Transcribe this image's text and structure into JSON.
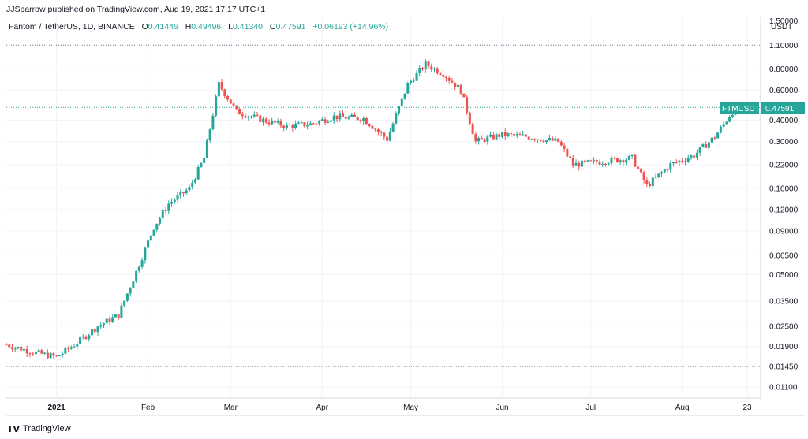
{
  "header": {
    "published": "JJSparrow published on TradingView.com, Aug 19, 2021 17:17 UTC+1",
    "symbol": "Fantom / TetherUS, 1D, BINANCE",
    "o_label": "O",
    "o_value": "0.41446",
    "h_label": "H",
    "h_value": "0.49496",
    "l_label": "L",
    "l_value": "0.41340",
    "c_label": "C",
    "c_value": "0.47591",
    "change": "+0.06193 (+14.96%)"
  },
  "axis": {
    "unit": "USDT",
    "price_ticks": [
      "1.10000",
      "0.80000",
      "0.60000",
      "0.40000",
      "0.30000",
      "0.22000",
      "0.16000",
      "0.12000",
      "0.09000",
      "0.06500",
      "0.05000",
      "0.03500",
      "0.02500",
      "0.01900",
      "0.01450",
      "0.01100"
    ],
    "time_ticks": [
      "2021",
      "Feb",
      "Mar",
      "Apr",
      "May",
      "Jun",
      "Jul",
      "Aug",
      "23"
    ],
    "top_tick": "1.50000"
  },
  "price_label": {
    "ticker": "FTMUSDT",
    "price": "0.47591"
  },
  "footer": {
    "brand": "TradingView"
  },
  "colors": {
    "up": "#26a69a",
    "down": "#ef5350",
    "grid": "#f0f3fa",
    "line": "#26a69a"
  },
  "chart_data": {
    "type": "candlestick",
    "title": "Fantom / TetherUS, 1D, BINANCE",
    "y_scale": "log",
    "ylim": [
      0.0095,
      1.6
    ],
    "x_range": [
      "2020-12-15",
      "2021-08-19"
    ],
    "series": [
      {
        "t": "2020-12-15",
        "c": 0.0195
      },
      {
        "t": "2020-12-25",
        "c": 0.0175
      },
      {
        "t": "2021-01-01",
        "c": 0.0165
      },
      {
        "t": "2021-01-08",
        "c": 0.02
      },
      {
        "t": "2021-01-15",
        "c": 0.025
      },
      {
        "t": "2021-01-22",
        "c": 0.029
      },
      {
        "t": "2021-01-28",
        "c": 0.052
      },
      {
        "t": "2021-02-03",
        "c": 0.095
      },
      {
        "t": "2021-02-08",
        "c": 0.13
      },
      {
        "t": "2021-02-15",
        "c": 0.16
      },
      {
        "t": "2021-02-20",
        "c": 0.24
      },
      {
        "t": "2021-02-25",
        "c": 0.65
      },
      {
        "t": "2021-03-03",
        "c": 0.45
      },
      {
        "t": "2021-03-12",
        "c": 0.4
      },
      {
        "t": "2021-03-20",
        "c": 0.37
      },
      {
        "t": "2021-03-28",
        "c": 0.38
      },
      {
        "t": "2021-04-05",
        "c": 0.42
      },
      {
        "t": "2021-04-15",
        "c": 0.41
      },
      {
        "t": "2021-04-23",
        "c": 0.31
      },
      {
        "t": "2021-04-30",
        "c": 0.65
      },
      {
        "t": "2021-05-06",
        "c": 0.85
      },
      {
        "t": "2021-05-12",
        "c": 0.75
      },
      {
        "t": "2021-05-18",
        "c": 0.6
      },
      {
        "t": "2021-05-23",
        "c": 0.3
      },
      {
        "t": "2021-06-01",
        "c": 0.33
      },
      {
        "t": "2021-06-10",
        "c": 0.32
      },
      {
        "t": "2021-06-20",
        "c": 0.3
      },
      {
        "t": "2021-06-25",
        "c": 0.22
      },
      {
        "t": "2021-07-05",
        "c": 0.23
      },
      {
        "t": "2021-07-15",
        "c": 0.24
      },
      {
        "t": "2021-07-20",
        "c": 0.165
      },
      {
        "t": "2021-07-28",
        "c": 0.22
      },
      {
        "t": "2021-08-05",
        "c": 0.25
      },
      {
        "t": "2021-08-12",
        "c": 0.32
      },
      {
        "t": "2021-08-19",
        "c": 0.4759
      }
    ],
    "horizontal_lines": [
      1.1,
      0.47591,
      0.0145
    ]
  }
}
